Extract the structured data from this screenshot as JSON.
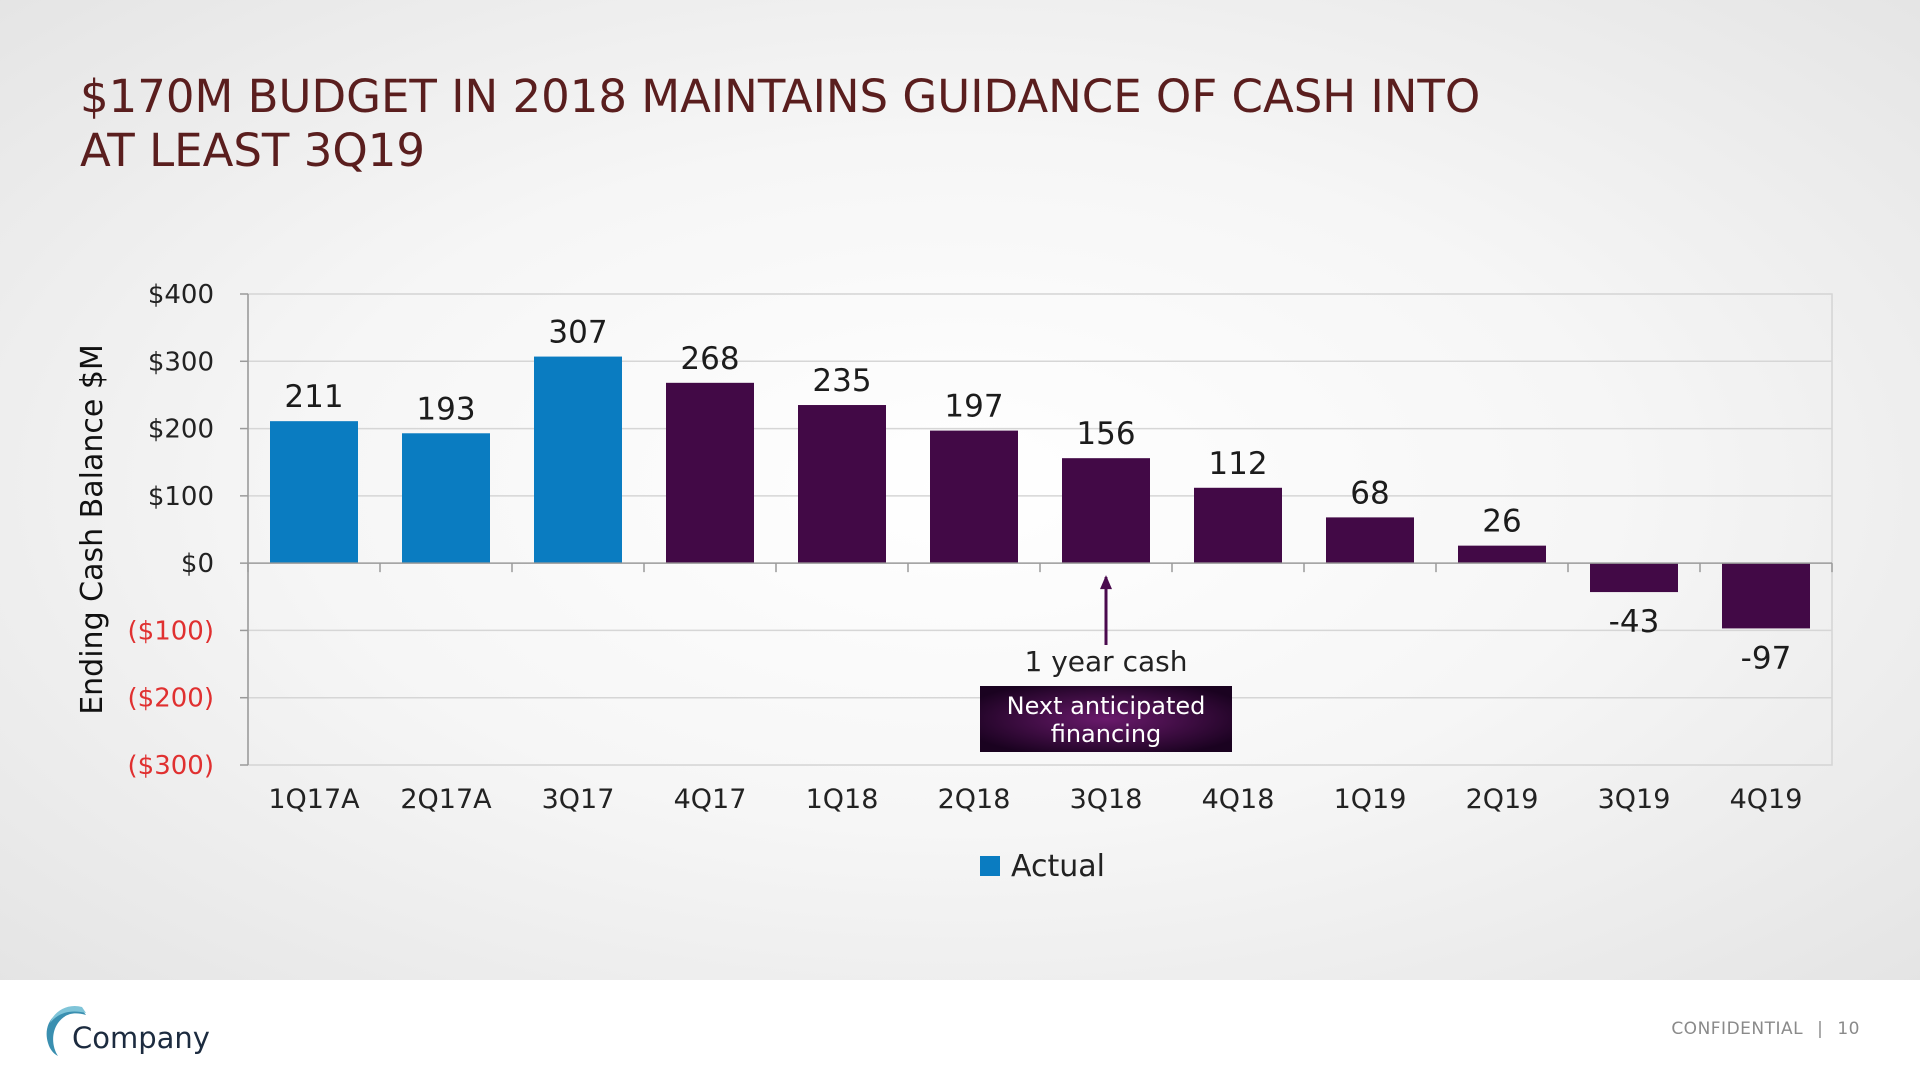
{
  "slide": {
    "title_line1": "$170M BUDGET IN 2018 MAINTAINS  GUIDANCE OF CASH INTO",
    "title_line2": "AT LEAST 3Q19"
  },
  "footer": {
    "company": "Company",
    "confidential": "CONFIDENTIAL",
    "separator": "|",
    "page_number": "10"
  },
  "colors": {
    "actual": "#0a7cc1",
    "projected": "#420946",
    "negative_tick": "#e03030",
    "title": "#5a1e1e"
  },
  "chart_data": {
    "type": "bar",
    "title": "",
    "xlabel": "",
    "ylabel": "Ending Cash Balance $M",
    "ylim": [
      -300,
      400
    ],
    "yticks": [
      400,
      300,
      200,
      100,
      0,
      -100,
      -200,
      -300
    ],
    "ytick_labels": [
      "$400",
      "$300",
      "$200",
      "$100",
      "$0",
      "($100)",
      "($200)",
      "($300)"
    ],
    "grid": true,
    "categories": [
      "1Q17A",
      "2Q17A",
      "3Q17",
      "4Q17",
      "1Q18",
      "2Q18",
      "3Q18",
      "4Q18",
      "1Q19",
      "2Q19",
      "3Q19",
      "4Q19"
    ],
    "values": [
      211,
      193,
      307,
      268,
      235,
      197,
      156,
      112,
      68,
      26,
      -43,
      -97
    ],
    "value_labels": [
      "211",
      "193",
      "307",
      "268",
      "235",
      "197",
      "156",
      "112",
      "68",
      "26",
      "-43",
      "-97"
    ],
    "actual_flags": [
      true,
      true,
      true,
      false,
      false,
      false,
      false,
      false,
      false,
      false,
      false,
      false
    ],
    "legend": [
      {
        "name": "Actual",
        "color": "#0a7cc1"
      }
    ],
    "legend_position": "bottom",
    "annotation": {
      "category": "3Q18",
      "arrow_label": "1 year cash",
      "box_line1": "Next anticipated",
      "box_line2": "financing"
    }
  }
}
